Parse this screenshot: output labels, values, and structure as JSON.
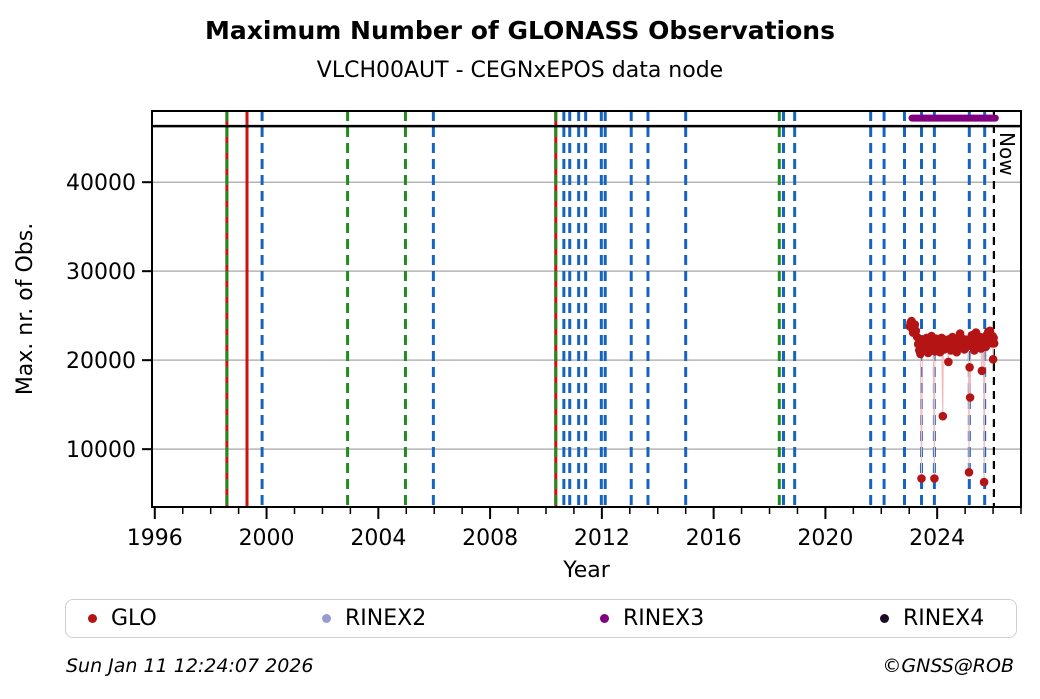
{
  "title": "Maximum Number of GLONASS Observations",
  "subtitle": "VLCH00AUT - CEGNxEPOS data node",
  "footer": {
    "timestamp": "Sun Jan 11 12:24:07 2026",
    "credit": "©GNSS@ROB"
  },
  "legend": {
    "items": [
      {
        "label": "GLO",
        "color": "#b41414"
      },
      {
        "label": "RINEX2",
        "color": "#9a9ad2"
      },
      {
        "label": "RINEX3",
        "color": "#800080"
      },
      {
        "label": "RINEX4",
        "color": "#1c0b26"
      }
    ]
  },
  "chart_data": {
    "type": "scatter",
    "title": "Maximum Number of GLONASS Observations",
    "subtitle": "VLCH00AUT - CEGNxEPOS data node",
    "xlabel": "Year",
    "ylabel": "Max. nr. of Obs.",
    "xlim": [
      1995.9,
      2027.0
    ],
    "ylim": [
      3500,
      48000
    ],
    "xticks_major": [
      1996,
      2000,
      2004,
      2008,
      2012,
      2016,
      2020,
      2024
    ],
    "xtick_minor_step": 1,
    "yticks": [
      10000,
      20000,
      30000,
      40000
    ],
    "grid": "horizontal-only",
    "grid_color": "#b4b4b4",
    "max_obs_reference_line": {
      "y": 46300,
      "color": "#000000",
      "style": "solid"
    },
    "now_marker": {
      "x": 2026.03,
      "label": "Now",
      "color": "#000000",
      "style": "dashed"
    },
    "rinex3_availability_segment": {
      "x_start": 2023.1,
      "x_end": 2026.08,
      "y": 47200,
      "color": "#800080"
    },
    "event_lines": [
      {
        "x": 1998.58,
        "color": "#d21010",
        "style": "solid"
      },
      {
        "x": 1998.58,
        "color": "#1e8c1e",
        "style": "dashed"
      },
      {
        "x": 1999.3,
        "color": "#d21010",
        "style": "solid"
      },
      {
        "x": 1999.84,
        "color": "#1565c0",
        "style": "dashed"
      },
      {
        "x": 2002.9,
        "color": "#1e8c1e",
        "style": "dashed"
      },
      {
        "x": 2004.97,
        "color": "#1e8c1e",
        "style": "dashed"
      },
      {
        "x": 2005.97,
        "color": "#1565c0",
        "style": "dashed"
      },
      {
        "x": 2010.35,
        "color": "#d21010",
        "style": "solid"
      },
      {
        "x": 2010.35,
        "color": "#1e8c1e",
        "style": "dashed"
      },
      {
        "x": 2010.64,
        "color": "#1565c0",
        "style": "dashed"
      },
      {
        "x": 2010.85,
        "color": "#1565c0",
        "style": "dashed"
      },
      {
        "x": 2011.17,
        "color": "#1565c0",
        "style": "dashed"
      },
      {
        "x": 2011.42,
        "color": "#1565c0",
        "style": "dashed"
      },
      {
        "x": 2011.98,
        "color": "#1565c0",
        "style": "dashed"
      },
      {
        "x": 2012.12,
        "color": "#1565c0",
        "style": "dashed"
      },
      {
        "x": 2013.05,
        "color": "#1565c0",
        "style": "dashed"
      },
      {
        "x": 2013.65,
        "color": "#1565c0",
        "style": "dashed"
      },
      {
        "x": 2015.0,
        "color": "#1565c0",
        "style": "dashed"
      },
      {
        "x": 2018.35,
        "color": "#1e8c1e",
        "style": "dashed"
      },
      {
        "x": 2018.5,
        "color": "#1565c0",
        "style": "dashed"
      },
      {
        "x": 2018.9,
        "color": "#1565c0",
        "style": "dashed"
      },
      {
        "x": 2021.62,
        "color": "#1565c0",
        "style": "dashed"
      },
      {
        "x": 2022.1,
        "color": "#1565c0",
        "style": "dashed"
      },
      {
        "x": 2022.83,
        "color": "#1565c0",
        "style": "dashed"
      },
      {
        "x": 2023.44,
        "color": "#1565c0",
        "style": "dashed"
      },
      {
        "x": 2023.9,
        "color": "#1565c0",
        "style": "dashed"
      },
      {
        "x": 2025.15,
        "color": "#1565c0",
        "style": "dashed"
      },
      {
        "x": 2025.7,
        "color": "#1565c0",
        "style": "dashed"
      }
    ],
    "series": [
      {
        "name": "GLO",
        "color": "#b41414",
        "connector_color": "#f2b8b8",
        "points": [
          [
            2023.02,
            23800
          ],
          [
            2023.05,
            24200
          ],
          [
            2023.08,
            24400
          ],
          [
            2023.11,
            23600
          ],
          [
            2023.14,
            23100
          ],
          [
            2023.17,
            23700
          ],
          [
            2023.2,
            24000
          ],
          [
            2023.24,
            23300
          ],
          [
            2023.28,
            22600
          ],
          [
            2023.32,
            21800
          ],
          [
            2023.36,
            21100
          ],
          [
            2023.4,
            20700
          ],
          [
            2023.44,
            6700
          ],
          [
            2023.47,
            21500
          ],
          [
            2023.5,
            22300
          ],
          [
            2023.53,
            21600
          ],
          [
            2023.56,
            22100
          ],
          [
            2023.59,
            21800
          ],
          [
            2023.62,
            22500
          ],
          [
            2023.65,
            21200
          ],
          [
            2023.68,
            20800
          ],
          [
            2023.71,
            21600
          ],
          [
            2023.74,
            22300
          ],
          [
            2023.77,
            21900
          ],
          [
            2023.8,
            22700
          ],
          [
            2023.83,
            21300
          ],
          [
            2023.86,
            22000
          ],
          [
            2023.9,
            6700
          ],
          [
            2023.92,
            21000
          ],
          [
            2023.95,
            21900
          ],
          [
            2023.98,
            22400
          ],
          [
            2024.01,
            21700
          ],
          [
            2024.04,
            22100
          ],
          [
            2024.07,
            21500
          ],
          [
            2024.1,
            20900
          ],
          [
            2024.13,
            21800
          ],
          [
            2024.16,
            22500
          ],
          [
            2024.2,
            13700
          ],
          [
            2024.22,
            21900
          ],
          [
            2024.25,
            21200
          ],
          [
            2024.28,
            22300
          ],
          [
            2024.31,
            21600
          ],
          [
            2024.34,
            22000
          ],
          [
            2024.37,
            21400
          ],
          [
            2024.4,
            19800
          ],
          [
            2024.43,
            21700
          ],
          [
            2024.46,
            22400
          ],
          [
            2024.49,
            21100
          ],
          [
            2024.52,
            21800
          ],
          [
            2024.55,
            22600
          ],
          [
            2024.58,
            22000
          ],
          [
            2024.61,
            21300
          ],
          [
            2024.64,
            22200
          ],
          [
            2024.67,
            21600
          ],
          [
            2024.7,
            20900
          ],
          [
            2024.73,
            21900
          ],
          [
            2024.76,
            22500
          ],
          [
            2024.79,
            21400
          ],
          [
            2024.82,
            23000
          ],
          [
            2024.85,
            22200
          ],
          [
            2024.88,
            21600
          ],
          [
            2024.91,
            22400
          ],
          [
            2024.94,
            21800
          ],
          [
            2024.97,
            21200
          ],
          [
            2025.0,
            21900
          ],
          [
            2025.03,
            22300
          ],
          [
            2025.06,
            21500
          ],
          [
            2025.09,
            22000
          ],
          [
            2025.12,
            21700
          ],
          [
            2025.14,
            7400
          ],
          [
            2025.16,
            19200
          ],
          [
            2025.18,
            15800
          ],
          [
            2025.21,
            21900
          ],
          [
            2025.24,
            22800
          ],
          [
            2025.27,
            21600
          ],
          [
            2025.3,
            22300
          ],
          [
            2025.33,
            21100
          ],
          [
            2025.36,
            22500
          ],
          [
            2025.39,
            23100
          ],
          [
            2025.42,
            22000
          ],
          [
            2025.45,
            21500
          ],
          [
            2025.48,
            22200
          ],
          [
            2025.51,
            21800
          ],
          [
            2025.54,
            22600
          ],
          [
            2025.57,
            21300
          ],
          [
            2025.6,
            18800
          ],
          [
            2025.63,
            21800
          ],
          [
            2025.66,
            22400
          ],
          [
            2025.68,
            6300
          ],
          [
            2025.71,
            22000
          ],
          [
            2025.74,
            21500
          ],
          [
            2025.77,
            22800
          ],
          [
            2025.8,
            22100
          ],
          [
            2025.83,
            23200
          ],
          [
            2025.86,
            22600
          ],
          [
            2025.89,
            23300
          ],
          [
            2025.92,
            22400
          ],
          [
            2025.95,
            21900
          ],
          [
            2025.98,
            22700
          ],
          [
            2026.0,
            20100
          ],
          [
            2026.02,
            22500
          ],
          [
            2026.04,
            21900
          ]
        ]
      }
    ]
  }
}
